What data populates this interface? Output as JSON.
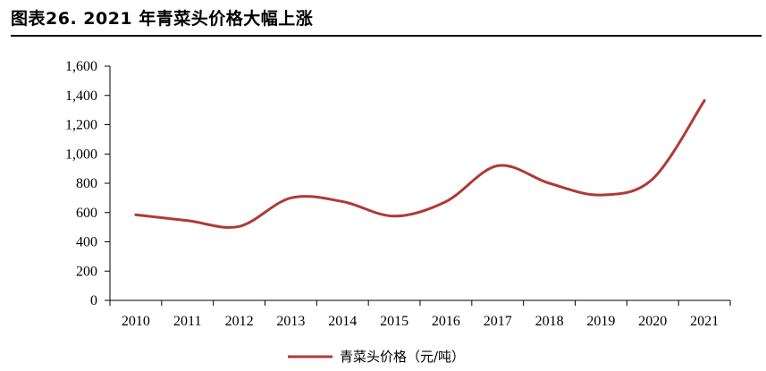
{
  "figure": {
    "title": "图表26.  2021 年青菜头价格大幅上涨"
  },
  "chart_data": {
    "type": "line",
    "title": "",
    "xlabel": "",
    "ylabel": "",
    "categories": [
      "2010",
      "2011",
      "2012",
      "2013",
      "2014",
      "2015",
      "2016",
      "2017",
      "2018",
      "2019",
      "2020",
      "2021"
    ],
    "series": [
      {
        "name": "青菜头价格（元/吨）",
        "color": "#b03a36",
        "values": [
          585,
          545,
          505,
          700,
          675,
          575,
          675,
          920,
          800,
          720,
          830,
          1365
        ]
      }
    ],
    "ylim": [
      0,
      1600
    ],
    "yticks": [
      0,
      200,
      400,
      600,
      800,
      1000,
      1200,
      1400,
      1600
    ],
    "ytick_labels": [
      "0",
      "200",
      "400",
      "600",
      "800",
      "1,000",
      "1,200",
      "1,400",
      "1,600"
    ],
    "grid": false,
    "legend_position": "bottom-center"
  }
}
